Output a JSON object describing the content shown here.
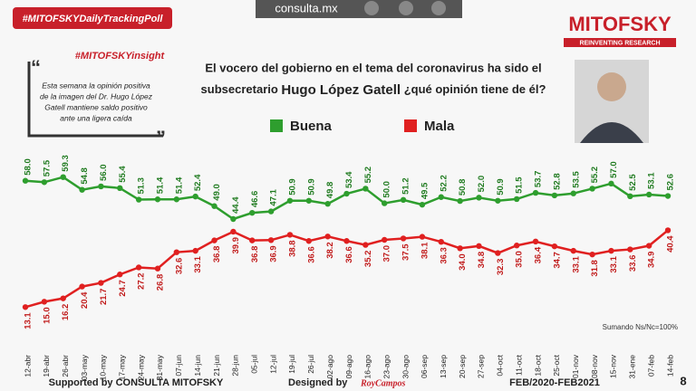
{
  "header": {
    "hashtag": "#MITOFSKYDailyTrackingPoll",
    "site": "consulta.mx",
    "brand": "MITOFSKY",
    "tagline": "REINVENTING RESEARCH",
    "insight_tag": "#MITOFSKYinsight",
    "insight_text": [
      "Esta semana la opinión positiva",
      "de la imagen del  Dr. Hugo López",
      "Gatell mantiene saldo positivo",
      "ante una ligera caída"
    ]
  },
  "chart_data": {
    "type": "line",
    "title_parts": [
      "El vocero del gobierno en el tema del coronavirus ha sido el",
      "subsecretario ",
      "Hugo López Gatell",
      " ¿qué opinión tiene de él?"
    ],
    "categories": [
      "12-abr",
      "19-abr",
      "26-abr",
      "03-may",
      "10-may",
      "17-may",
      "24-may",
      "31-may",
      "07-jun",
      "14-jun",
      "21-jun",
      "28-jun",
      "05-jul",
      "12-jul",
      "19-jul",
      "26-jul",
      "02-ago",
      "09-ago",
      "16-ago",
      "23-ago",
      "30-ago",
      "06-sep",
      "13-sep",
      "20-sep",
      "27-sep",
      "04-oct",
      "11-oct",
      "18-oct",
      "25-oct",
      "01-nov",
      "08-nov",
      "15-nov",
      "31-ene",
      "07-feb",
      "14-feb"
    ],
    "series": [
      {
        "name": "Buena",
        "color": "#2e9e2e",
        "values": [
          58.0,
          57.5,
          59.3,
          54.8,
          56.0,
          55.4,
          51.3,
          51.4,
          51.4,
          52.4,
          49.0,
          44.4,
          46.6,
          47.1,
          50.9,
          50.9,
          49.8,
          53.4,
          55.2,
          50.0,
          51.2,
          49.5,
          52.2,
          50.8,
          52.0,
          50.9,
          51.5,
          53.7,
          52.8,
          53.5,
          55.2,
          57.0,
          52.5,
          53.1,
          52.6
        ],
        "value_labels": [
          "58.0",
          "57.5",
          "59.3",
          "54.8",
          "56.0",
          "55.4",
          "51.3",
          "51.4",
          "51.4",
          "52.4",
          "49.0",
          "44.4",
          "46.6",
          "47.1",
          "50.9",
          "50.9",
          "49.8",
          "53.4",
          "55.2",
          "50.0",
          "51.2",
          "49.5",
          "52.2",
          "50.8",
          "52.0",
          "50.9",
          "51.5",
          "53.7",
          "52.8",
          "53.5",
          "55.2",
          "57.0",
          "52.5",
          "53.1",
          "52.6"
        ]
      },
      {
        "name": "Mala",
        "color": "#e02020",
        "values": [
          13.1,
          15.0,
          16.2,
          20.4,
          21.7,
          24.7,
          27.2,
          26.8,
          32.6,
          33.1,
          36.8,
          39.9,
          36.8,
          36.9,
          38.8,
          36.6,
          38.2,
          36.6,
          35.2,
          37.0,
          37.5,
          38.1,
          36.3,
          34.0,
          34.8,
          32.3,
          35.0,
          36.4,
          34.7,
          33.1,
          31.8,
          33.1,
          33.6,
          34.9,
          40.4
        ],
        "value_labels": [
          "13.1",
          "15.0",
          "16.2",
          "20.4",
          "21.7",
          "24.7",
          "27.2",
          "26.8",
          "32.6",
          "33.1",
          "36.8",
          "39.9",
          "36.8",
          "36.9",
          "38.8",
          "36.6",
          "38.2",
          "36.6",
          "35.2",
          "37.0",
          "37.5",
          "38.1",
          "36.3",
          "34.0",
          "34.8",
          "32.3",
          "35.0",
          "36.4",
          "34.7",
          "33.1",
          "31.8",
          "33.1",
          "33.6",
          "34.9",
          "40.4"
        ]
      }
    ],
    "ylim": [
      0,
      74
    ],
    "note": "Sumando Ns/Nc=100%"
  },
  "footer": {
    "supported": "Supported by  CONSULTA  MITOFSKY",
    "designed": "Designed by",
    "designer": "RoyCampos",
    "period": "FEB/2020-FEB2021",
    "page": "8"
  }
}
